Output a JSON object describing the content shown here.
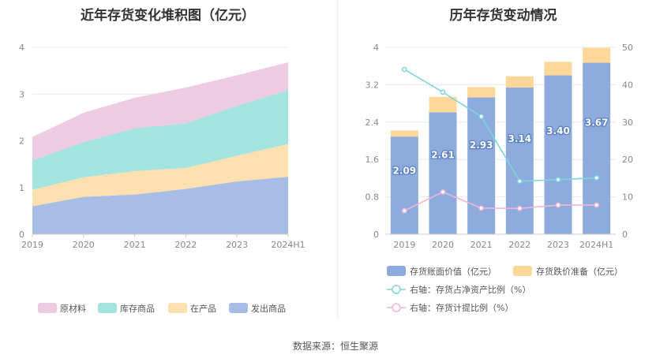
{
  "left_title": "近年存货变化堆积图（亿元）",
  "right_title": "历年存货变动情况",
  "source": "数据来源：恒生聚源",
  "chart_data": [
    {
      "type": "area",
      "stacked": true,
      "title": "近年存货变化堆积图（亿元）",
      "categories": [
        "2019",
        "2020",
        "2021",
        "2022",
        "2023",
        "2024H1"
      ],
      "ylim": [
        0,
        4
      ],
      "yticks": [
        "0",
        "1",
        "2",
        "3",
        "4"
      ],
      "grid": true,
      "legend_position": "bottom",
      "series": [
        {
          "name": "发出商品",
          "color": "#a8bde6",
          "values": [
            0.6,
            0.8,
            0.85,
            0.97,
            1.13,
            1.23
          ]
        },
        {
          "name": "在产品",
          "color": "#fde0b0",
          "values": [
            0.35,
            0.42,
            0.5,
            0.45,
            0.55,
            0.7
          ]
        },
        {
          "name": "库存商品",
          "color": "#a3e3e0",
          "values": [
            0.63,
            0.75,
            0.92,
            0.95,
            1.07,
            1.15
          ]
        },
        {
          "name": "原材料",
          "color": "#eccbe3",
          "values": [
            0.5,
            0.63,
            0.65,
            0.77,
            0.65,
            0.6
          ]
        }
      ],
      "legend_order": [
        "原材料",
        "库存商品",
        "在产品",
        "发出商品"
      ]
    },
    {
      "type": "bar",
      "title": "历年存货变动情况",
      "categories": [
        "2019",
        "2020",
        "2021",
        "2022",
        "2023",
        "2024H1"
      ],
      "ylim": [
        0,
        4
      ],
      "yticks": [
        "0",
        "0.8",
        "1.6",
        "2.4",
        "3.2",
        "4"
      ],
      "y2lim": [
        0,
        50
      ],
      "y2ticks": [
        "0",
        "10",
        "20",
        "30",
        "40",
        "50"
      ],
      "legend_position": "bottom",
      "series": [
        {
          "name": "存货账面价值（亿元）",
          "type": "bar",
          "color": "#8dabdc",
          "values": [
            2.09,
            2.61,
            2.93,
            3.14,
            3.4,
            3.67
          ],
          "labels": [
            "2.09",
            "2.61",
            "2.93",
            "3.14",
            "3.40",
            "3.67"
          ]
        },
        {
          "name": "存货跌价准备（亿元）",
          "type": "bar",
          "color": "#fdd898",
          "values": [
            0.13,
            0.33,
            0.22,
            0.24,
            0.29,
            0.32
          ]
        },
        {
          "name": "右轴：存货占净资产比例（%）",
          "type": "line",
          "axis": "right",
          "color": "#7fd6dc",
          "values": [
            44.1,
            38.0,
            31.5,
            14.2,
            14.6,
            15.1
          ]
        },
        {
          "name": "右轴：存货计提比例（%）",
          "type": "line",
          "axis": "right",
          "color": "#f0b6d6",
          "values": [
            6.3,
            11.3,
            7.0,
            6.9,
            7.8,
            7.8
          ]
        }
      ]
    }
  ]
}
